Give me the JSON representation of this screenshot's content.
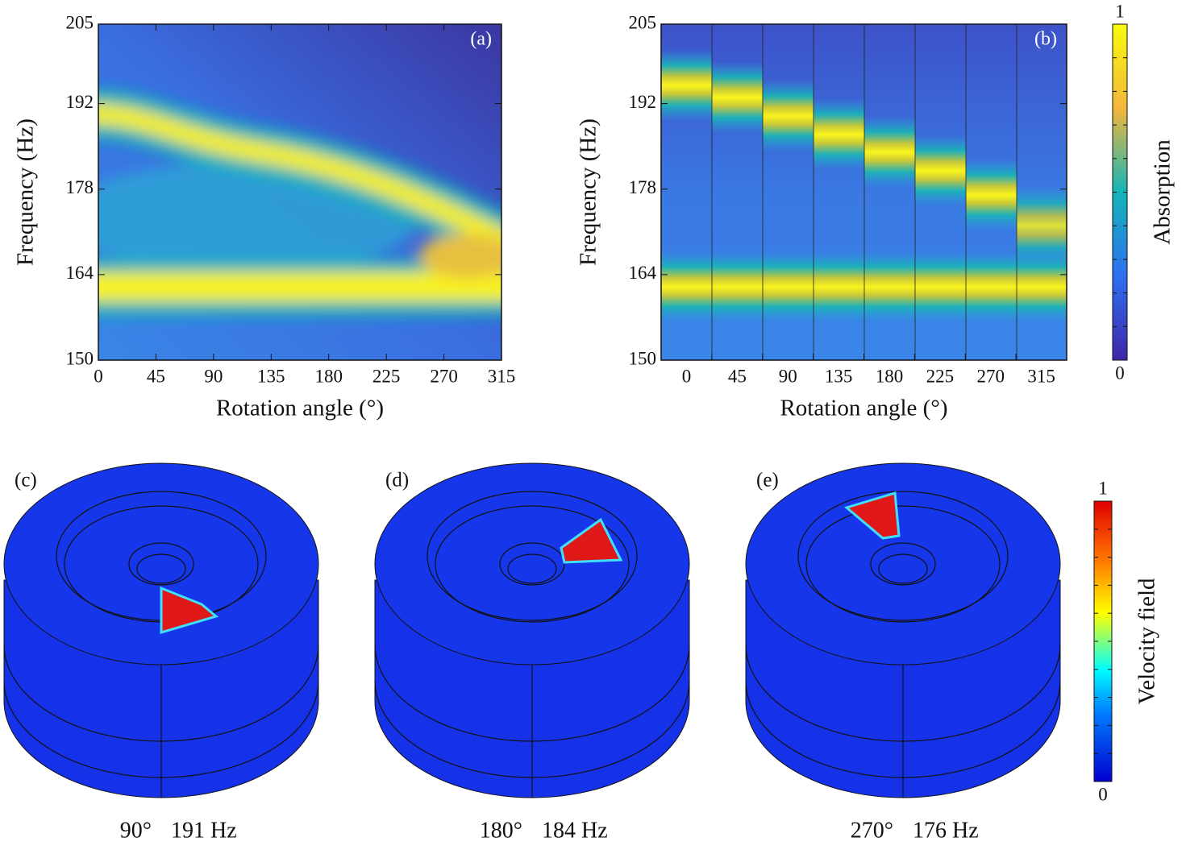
{
  "panels": [
    {
      "label": "(a)",
      "type": "heatmap",
      "xlabel": "Rotation angle (°)",
      "ylabel": "Frequency (Hz)",
      "xlim": [
        0,
        315
      ],
      "xticks": [
        0,
        45,
        90,
        135,
        180,
        225,
        270,
        315
      ],
      "ylim": [
        150,
        205
      ],
      "yticks": [
        150,
        164,
        178,
        192,
        205
      ]
    },
    {
      "label": "(b)",
      "type": "heatmap",
      "xlabel": "Rotation angle (°)",
      "ylabel": "Frequency (Hz)",
      "categories": [
        "0",
        "45",
        "90",
        "135",
        "180",
        "225",
        "270",
        "315"
      ],
      "ylim": [
        150,
        205
      ],
      "yticks": [
        150,
        164,
        178,
        192,
        205
      ]
    }
  ],
  "colorbars": [
    {
      "label": "Absorption",
      "min": 0,
      "max": 1
    },
    {
      "label": "Velocity field",
      "min": 0,
      "max": 1
    }
  ],
  "views": [
    {
      "label": "(c)",
      "angle": "90°",
      "frequency": "191 Hz"
    },
    {
      "label": "(d)",
      "angle": "180°",
      "frequency": "184 Hz"
    },
    {
      "label": "(e)",
      "angle": "270°",
      "frequency": "176 Hz"
    }
  ]
}
